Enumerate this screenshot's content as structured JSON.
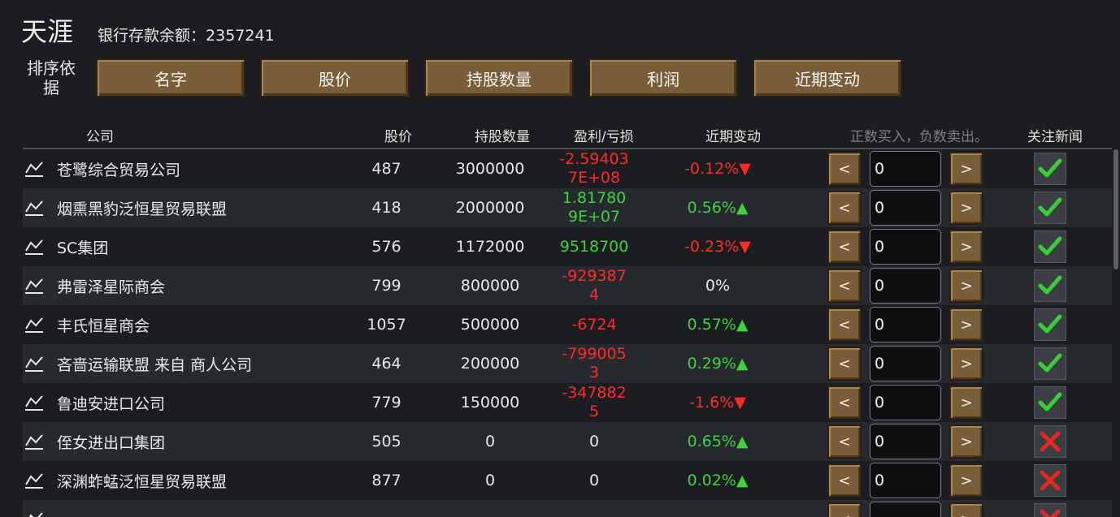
{
  "header": {
    "title": "天涯",
    "balance_label": "银行存款余额：",
    "balance_value": "2357241"
  },
  "sort": {
    "label": "排序依据",
    "buttons": [
      "名字",
      "股价",
      "持股数量",
      "利润",
      "近期变动"
    ]
  },
  "columns": {
    "company": "公司",
    "price": "股价",
    "shares": "持股数量",
    "profit": "盈利/亏损",
    "change": "近期变动",
    "trade_hint": "正数买入，负数卖出。",
    "follow": "关注新闻"
  },
  "colors": {
    "loss": "#ff2a2a",
    "gain": "#3fd23f",
    "button": "#7a5e39",
    "check": "#38d038",
    "cross": "#e02a2a"
  },
  "row_controls": {
    "decrease": "<",
    "increase": ">"
  },
  "rows": [
    {
      "name": "苍鹭综合贸易公司",
      "price": "487",
      "shares": "3000000",
      "profit": "-2.594037E+08",
      "profit_sign": "red",
      "change": "-0.12%▼",
      "change_sign": "red",
      "qty": "0",
      "follow": true
    },
    {
      "name": "烟熏黑豹泛恒星贸易联盟",
      "price": "418",
      "shares": "2000000",
      "profit": "1.817809E+07",
      "profit_sign": "green",
      "change": "0.56%▲",
      "change_sign": "green",
      "qty": "0",
      "follow": true
    },
    {
      "name": "SC集团",
      "price": "576",
      "shares": "1172000",
      "profit": "9518700",
      "profit_sign": "green",
      "change": "-0.23%▼",
      "change_sign": "red",
      "qty": "0",
      "follow": true
    },
    {
      "name": "弗雷泽星际商会",
      "price": "799",
      "shares": "800000",
      "profit": "-9293874",
      "profit_sign": "red",
      "change": "0%",
      "change_sign": "white",
      "qty": "0",
      "follow": true
    },
    {
      "name": "丰氏恒星商会",
      "price": "1057",
      "shares": "500000",
      "profit": "-6724",
      "profit_sign": "red",
      "change": "0.57%▲",
      "change_sign": "green",
      "qty": "0",
      "follow": true
    },
    {
      "name": "吝啬运输联盟 来自 商人公司",
      "price": "464",
      "shares": "200000",
      "profit": "-7990053",
      "profit_sign": "red",
      "change": "0.29%▲",
      "change_sign": "green",
      "qty": "0",
      "follow": true
    },
    {
      "name": "鲁迪安进口公司",
      "price": "779",
      "shares": "150000",
      "profit": "-3478825",
      "profit_sign": "red",
      "change": "-1.6%▼",
      "change_sign": "red",
      "qty": "0",
      "follow": true
    },
    {
      "name": "侄女进出口集团",
      "price": "505",
      "shares": "0",
      "profit": "0",
      "profit_sign": "white",
      "change": "0.65%▲",
      "change_sign": "green",
      "qty": "0",
      "follow": false
    },
    {
      "name": "深渊蚱蜢泛恒星贸易联盟",
      "price": "877",
      "shares": "0",
      "profit": "0",
      "profit_sign": "white",
      "change": "0.02%▲",
      "change_sign": "green",
      "qty": "0",
      "follow": false
    },
    {
      "name": "",
      "price": "",
      "shares": "",
      "profit": "",
      "profit_sign": "white",
      "change": "",
      "change_sign": "green",
      "qty": "",
      "follow": false
    }
  ]
}
